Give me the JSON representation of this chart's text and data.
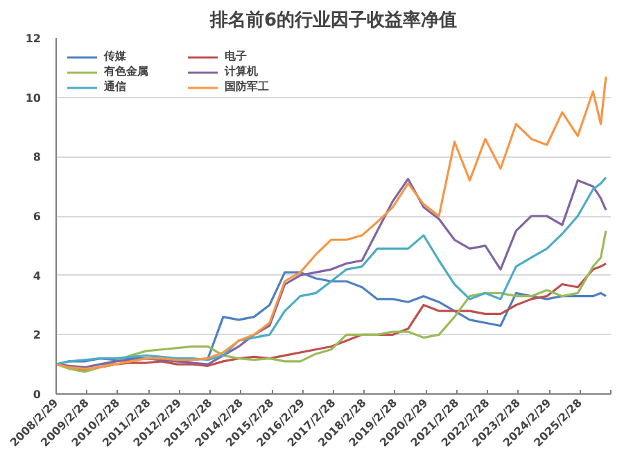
{
  "chart_data": {
    "type": "line",
    "title": "排名前6的行业因子收益率净值",
    "x": [
      "2008-02-29",
      "2008-08",
      "2009-02",
      "2009-08",
      "2010-02",
      "2010-08",
      "2011-02",
      "2011-08",
      "2012-02",
      "2012-08",
      "2013-02",
      "2013-08",
      "2014-02",
      "2014-08",
      "2015-02",
      "2015-08",
      "2016-02",
      "2016-08",
      "2017-02",
      "2017-08",
      "2018-02",
      "2018-08",
      "2019-02",
      "2019-08",
      "2020-02",
      "2020-08",
      "2021-02",
      "2021-08",
      "2022-02",
      "2022-08",
      "2023-02",
      "2023-08",
      "2024-02",
      "2024-08",
      "2025-02",
      "2025-08",
      "2025-11",
      "2026-01"
    ],
    "series": [
      {
        "name": "传媒",
        "color": "#4e7fc2",
        "values": [
          1.0,
          1.1,
          1.1,
          1.2,
          1.15,
          1.2,
          1.2,
          1.15,
          1.1,
          1.15,
          1.2,
          2.6,
          2.5,
          2.6,
          3.0,
          4.1,
          4.1,
          3.9,
          3.8,
          3.8,
          3.6,
          3.2,
          3.2,
          3.1,
          3.3,
          3.1,
          2.8,
          2.5,
          2.4,
          2.3,
          3.4,
          3.3,
          3.2,
          3.3,
          3.3,
          3.3,
          3.4,
          3.3
        ]
      },
      {
        "name": "电子",
        "color": "#c0504d",
        "values": [
          1.0,
          0.9,
          0.8,
          0.9,
          1.0,
          1.05,
          1.05,
          1.1,
          1.0,
          1.0,
          0.95,
          1.1,
          1.2,
          1.25,
          1.2,
          1.3,
          1.4,
          1.5,
          1.6,
          1.8,
          2.0,
          2.0,
          2.0,
          2.2,
          3.0,
          2.8,
          2.8,
          2.8,
          2.7,
          2.7,
          3.0,
          3.2,
          3.3,
          3.7,
          3.6,
          4.2,
          4.3,
          4.4
        ]
      },
      {
        "name": "有色金属",
        "color": "#9bbb59",
        "values": [
          1.0,
          0.85,
          0.75,
          0.9,
          1.1,
          1.3,
          1.45,
          1.5,
          1.55,
          1.6,
          1.6,
          1.3,
          1.2,
          1.15,
          1.2,
          1.1,
          1.1,
          1.35,
          1.5,
          2.0,
          2.0,
          2.0,
          2.1,
          2.1,
          1.9,
          2.0,
          2.6,
          3.3,
          3.4,
          3.4,
          3.3,
          3.3,
          3.5,
          3.3,
          3.4,
          4.3,
          4.6,
          5.5
        ]
      },
      {
        "name": "计算机",
        "color": "#8064a2",
        "values": [
          1.0,
          0.95,
          0.9,
          1.0,
          1.1,
          1.15,
          1.2,
          1.15,
          1.1,
          1.05,
          1.0,
          1.3,
          1.6,
          2.0,
          2.3,
          3.7,
          4.0,
          4.1,
          4.2,
          4.4,
          4.5,
          5.5,
          6.5,
          7.25,
          6.3,
          5.9,
          5.2,
          4.9,
          5.0,
          4.2,
          5.5,
          6.0,
          6.0,
          5.7,
          7.2,
          7.0,
          6.6,
          6.2
        ]
      },
      {
        "name": "通信",
        "color": "#4bacc6",
        "values": [
          1.0,
          1.1,
          1.15,
          1.2,
          1.2,
          1.25,
          1.3,
          1.25,
          1.2,
          1.2,
          1.15,
          1.3,
          1.8,
          1.9,
          2.0,
          2.8,
          3.3,
          3.4,
          3.8,
          4.2,
          4.3,
          4.9,
          4.9,
          4.9,
          5.35,
          4.5,
          3.7,
          3.2,
          3.4,
          3.2,
          4.3,
          4.6,
          4.9,
          5.4,
          6.0,
          6.9,
          7.1,
          7.3
        ]
      },
      {
        "name": "国防军工",
        "color": "#f79646",
        "values": [
          1.0,
          0.9,
          0.85,
          0.9,
          1.0,
          1.1,
          1.2,
          1.2,
          1.15,
          1.15,
          1.2,
          1.4,
          1.8,
          2.0,
          2.4,
          3.8,
          4.1,
          4.7,
          5.2,
          5.2,
          5.35,
          5.8,
          6.3,
          7.1,
          6.4,
          6.0,
          8.5,
          7.2,
          8.6,
          7.6,
          9.1,
          8.6,
          8.4,
          9.5,
          8.7,
          10.2,
          9.1,
          10.7
        ]
      }
    ],
    "xlim": [
      "2008-02-29",
      "2026-02-28"
    ],
    "xticks": [
      {
        "value": "2008-02-29",
        "label": "2008/2/29"
      },
      {
        "value": "2009-02-28",
        "label": "2009/2/28"
      },
      {
        "value": "2010-02-28",
        "label": "2010/2/28"
      },
      {
        "value": "2011-02-28",
        "label": "2011/2/28"
      },
      {
        "value": "2012-02-29",
        "label": "2012/2/29"
      },
      {
        "value": "2013-02-28",
        "label": "2013/2/28"
      },
      {
        "value": "2014-02-28",
        "label": "2014/2/28"
      },
      {
        "value": "2015-02-28",
        "label": "2015/2/28"
      },
      {
        "value": "2016-02-29",
        "label": "2016/2/29"
      },
      {
        "value": "2017-02-28",
        "label": "2017/2/28"
      },
      {
        "value": "2018-02-28",
        "label": "2018/2/28"
      },
      {
        "value": "2019-02-28",
        "label": "2019/2/28"
      },
      {
        "value": "2020-02-29",
        "label": "2020/2/29"
      },
      {
        "value": "2021-02-28",
        "label": "2021/2/28"
      },
      {
        "value": "2022-02-28",
        "label": "2022/2/28"
      },
      {
        "value": "2023-02-28",
        "label": "2023/2/28"
      },
      {
        "value": "2024-02-29",
        "label": "2024/2/29"
      },
      {
        "value": "2025-02-28",
        "label": "2025/2/28"
      },
      {
        "value": "2026-02-28",
        "label": null
      }
    ],
    "ylim": [
      0,
      12
    ],
    "yticks": [
      0,
      2,
      4,
      6,
      8,
      10,
      12
    ],
    "grid": "y",
    "legend": "top left",
    "marker": "none",
    "line_style": "solid"
  }
}
